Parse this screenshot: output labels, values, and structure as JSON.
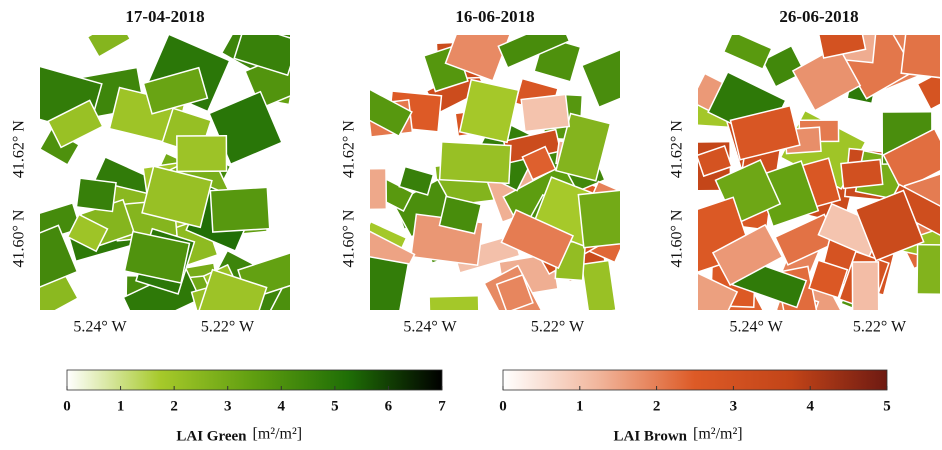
{
  "maps": [
    {
      "title": "17-04-2018",
      "xticks": [
        "5.24° W",
        "5.22° W"
      ],
      "yticks": [
        "41.62° N",
        "41.60° N"
      ]
    },
    {
      "title": "16-06-2018",
      "xticks": [
        "5.24° W",
        "5.22° W"
      ],
      "yticks": [
        "41.62° N",
        "41.60° N"
      ]
    },
    {
      "title": "26-06-2018",
      "xticks": [
        "5.24° W",
        "5.22° W"
      ],
      "yticks": [
        "41.62° N",
        "41.60° N"
      ]
    }
  ],
  "colorbars": [
    {
      "label": "LAI Green",
      "unit": "[m²/m²]",
      "lim": [
        0,
        7
      ],
      "ticks": [
        0,
        1,
        2,
        3,
        4,
        5,
        6,
        7
      ],
      "colors": [
        "#ffffff",
        "#a6c92a",
        "#5f9e10",
        "#1f6e06",
        "#000000"
      ]
    },
    {
      "label": "LAI Brown",
      "unit": "[m²/m²]",
      "lim": [
        0,
        5
      ],
      "ticks": [
        0,
        1,
        2,
        3,
        4,
        5
      ],
      "colors": [
        "#ffffff",
        "#f1b59b",
        "#dd5a26",
        "#c24418",
        "#6e1a12"
      ]
    }
  ]
}
